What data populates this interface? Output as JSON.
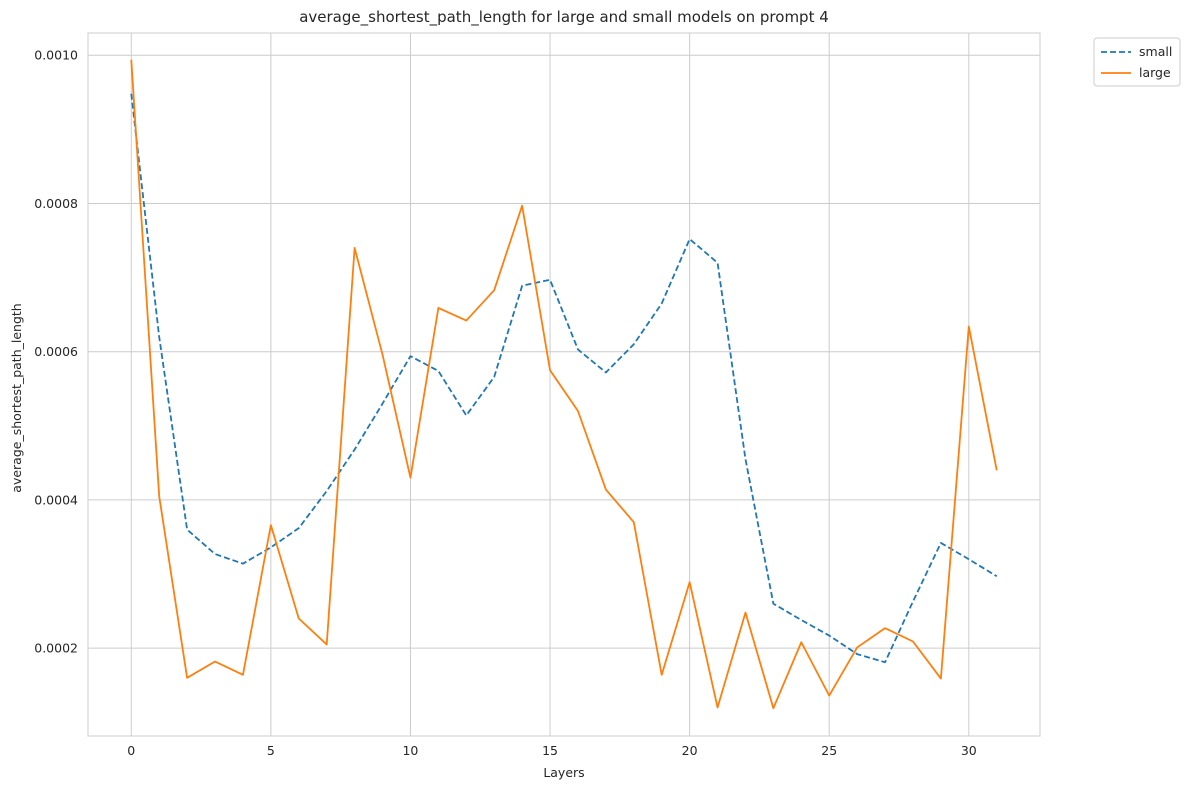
{
  "chart_data": {
    "type": "line",
    "title": "average_shortest_path_length for large and small models on prompt 4",
    "xlabel": "Layers",
    "ylabel": "average_shortest_path_length",
    "xlim": [
      -1.55,
      32.55
    ],
    "ylim": [
      8.15e-05,
      0.00103
    ],
    "xticks": [
      0,
      5,
      10,
      15,
      20,
      25,
      30
    ],
    "yticks": [
      0.0002,
      0.0004,
      0.0006,
      0.0008,
      0.001
    ],
    "ytick_labels": [
      "0.0002",
      "0.0004",
      "0.0006",
      "0.0008",
      "0.0010"
    ],
    "grid": true,
    "legend": {
      "placement": "outside-top-right"
    },
    "x": [
      0,
      1,
      2,
      3,
      4,
      5,
      6,
      7,
      8,
      9,
      10,
      11,
      12,
      13,
      14,
      15,
      16,
      17,
      18,
      19,
      20,
      21,
      22,
      23,
      24,
      25,
      26,
      27,
      28,
      29,
      30,
      31
    ],
    "series": [
      {
        "name": "small",
        "color": "#1f77b4",
        "dash": "dashed",
        "values": [
          0.000948,
          0.00062,
          0.00036,
          0.000327,
          0.000314,
          0.000336,
          0.000362,
          0.000412,
          0.000468,
          0.00053,
          0.000594,
          0.000574,
          0.000514,
          0.000566,
          0.000689,
          0.000697,
          0.000603,
          0.000572,
          0.00061,
          0.000665,
          0.000752,
          0.00072,
          0.000455,
          0.00026,
          0.000238,
          0.000217,
          0.000192,
          0.000181,
          0.000263,
          0.000342,
          0.00032,
          0.000297
        ]
      },
      {
        "name": "large",
        "color": "#ff7f0e",
        "dash": "solid",
        "values": [
          0.000994,
          0.000405,
          0.00016,
          0.000182,
          0.000164,
          0.000366,
          0.00024,
          0.000205,
          0.00074,
          0.000596,
          0.00043,
          0.000659,
          0.000642,
          0.000683,
          0.000797,
          0.000575,
          0.00052,
          0.000414,
          0.00037,
          0.000164,
          0.000289,
          0.00012,
          0.000248,
          0.000119,
          0.000208,
          0.000136,
          0.000201,
          0.000227,
          0.000209,
          0.000159,
          0.000634,
          0.00044
        ]
      }
    ]
  }
}
